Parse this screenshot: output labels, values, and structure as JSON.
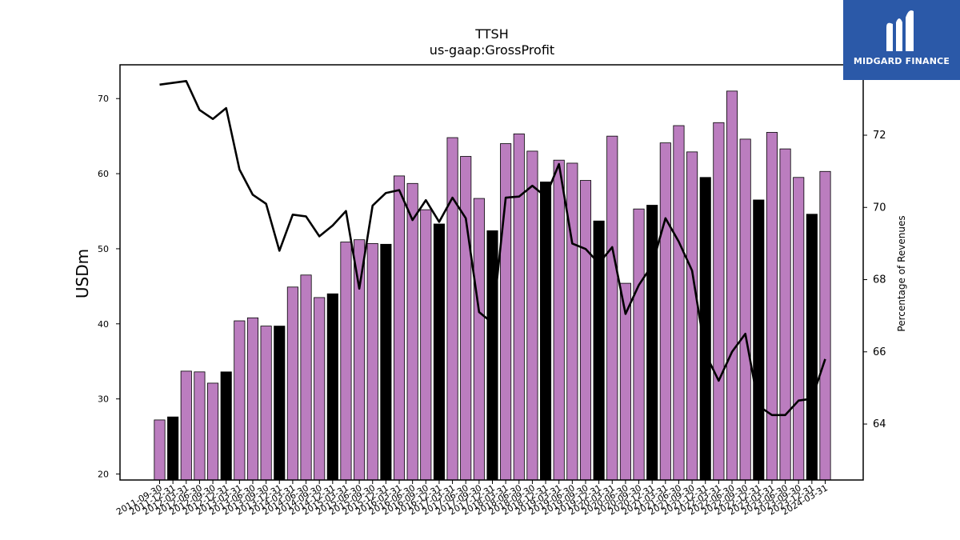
{
  "chart_data": {
    "type": "bar",
    "title": "TTSH",
    "subtitle": "us-gaap:GrossProfit",
    "ylabel": "USDm",
    "y2label": "Percentage of Revenues",
    "ylim": [
      19.2,
      74.5
    ],
    "y2lim": [
      62.45,
      73.95
    ],
    "yticks": [
      20,
      30,
      40,
      50,
      60,
      70
    ],
    "y2ticks": [
      64,
      66,
      68,
      70,
      72
    ],
    "categories": [
      "2011-09-30",
      "2011-12-31",
      "2012-03-31",
      "2012-06-30",
      "2012-09-30",
      "2012-12-31",
      "2013-03-31",
      "2013-06-30",
      "2013-09-30",
      "2013-12-31",
      "2014-03-31",
      "2014-06-30",
      "2014-09-30",
      "2014-12-31",
      "2015-03-31",
      "2015-06-30",
      "2015-09-30",
      "2015-12-31",
      "2016-03-31",
      "2016-06-30",
      "2016-09-30",
      "2016-12-31",
      "2017-03-31",
      "2017-06-30",
      "2017-09-30",
      "2017-12-31",
      "2018-03-31",
      "2018-06-30",
      "2018-09-30",
      "2018-12-31",
      "2019-03-31",
      "2019-06-30",
      "2019-09-30",
      "2019-12-31",
      "2020-03-31",
      "2020-06-30",
      "2020-09-30",
      "2020-12-31",
      "2021-03-31",
      "2021-06-30",
      "2021-09-30",
      "2021-12-31",
      "2022-03-31",
      "2022-06-30",
      "2022-09-30",
      "2022-12-31",
      "2023-03-31",
      "2023-06-30",
      "2023-09-30",
      "2023-12-31",
      "2024-03-31"
    ],
    "series": [
      {
        "kind": "bar",
        "values": [
          27.2,
          27.6,
          33.7,
          33.6,
          32.1,
          33.6,
          40.4,
          40.8,
          39.7,
          39.7,
          44.9,
          46.5,
          43.5,
          44.0,
          50.9,
          51.2,
          50.7,
          50.6,
          59.7,
          58.7,
          55.2,
          53.3,
          64.8,
          62.3,
          56.7,
          52.4,
          64.0,
          65.3,
          63.0,
          58.9,
          61.8,
          61.4,
          59.1,
          53.7,
          65.0,
          45.4,
          55.3,
          55.8,
          64.1,
          66.4,
          62.9,
          59.5,
          66.8,
          71.0,
          64.6,
          56.5,
          65.5,
          63.3,
          59.5,
          54.6,
          60.3
        ],
        "highlight": [
          false,
          true,
          false,
          false,
          false,
          true,
          false,
          false,
          false,
          true,
          false,
          false,
          false,
          true,
          false,
          false,
          false,
          true,
          false,
          false,
          false,
          true,
          false,
          false,
          false,
          true,
          false,
          false,
          false,
          true,
          false,
          false,
          false,
          true,
          false,
          false,
          false,
          true,
          false,
          false,
          false,
          true,
          false,
          false,
          false,
          true,
          false,
          false,
          false,
          true,
          false
        ],
        "color": "#bb7dbf",
        "highlight_color": "#000000"
      },
      {
        "kind": "line",
        "axis": "right",
        "values": [
          73.4,
          73.45,
          73.5,
          72.7,
          72.45,
          72.75,
          71.05,
          70.35,
          70.1,
          68.8,
          69.8,
          69.75,
          69.2,
          69.5,
          69.9,
          67.75,
          70.05,
          70.4,
          70.48,
          69.65,
          70.2,
          69.6,
          70.27,
          69.7,
          67.1,
          66.8,
          70.27,
          70.3,
          70.6,
          70.3,
          71.2,
          69.0,
          68.85,
          68.45,
          68.9,
          67.05,
          67.85,
          68.4,
          69.7,
          69.05,
          68.25,
          65.95,
          65.2,
          66.0,
          66.5,
          64.5,
          64.25,
          64.25,
          64.65,
          64.7,
          65.8
        ],
        "color": "#000000"
      }
    ],
    "grid": false,
    "legend": "none"
  },
  "logo": {
    "text": "MIDGARD FINANCE",
    "bg": "#2b59a8"
  }
}
